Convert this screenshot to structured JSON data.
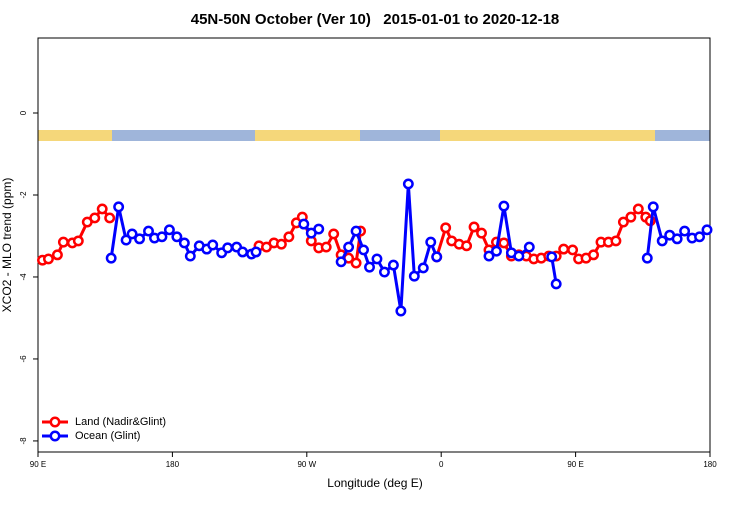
{
  "chart_data": {
    "type": "line",
    "title": "45N-50N October (Ver 10)   2015-01-01 to 2020-12-18",
    "xlabel": "Longitude (deg E)",
    "ylabel": "XCO2 - MLO trend (ppm)",
    "xlim": [
      90,
      540
    ],
    "xticks": [
      {
        "value": 90,
        "label": "90 E"
      },
      {
        "value": 180,
        "label": "180"
      },
      {
        "value": 270,
        "label": "90 W"
      },
      {
        "value": 360,
        "label": "0"
      },
      {
        "value": 450,
        "label": "90 E"
      },
      {
        "value": 540,
        "label": "180"
      }
    ],
    "ylim": [
      -8.27,
      1.83
    ],
    "yticks": [
      0,
      -2,
      -4,
      -6,
      -8
    ],
    "legend": "bottomleft",
    "series": [
      {
        "name": "Land (Nadir&Glint)",
        "color": "#ff0000",
        "x": [
          93,
          97,
          103,
          107,
          113,
          117,
          123,
          128,
          133,
          138,
          null,
          238,
          243,
          248,
          253,
          258,
          263,
          267,
          273,
          278,
          283,
          288,
          293,
          298,
          303,
          306,
          null,
          357,
          363,
          367,
          372,
          377,
          382,
          387,
          392,
          397,
          402,
          407,
          412,
          417,
          422,
          427,
          432,
          437,
          442,
          448,
          452,
          457,
          462,
          467,
          472,
          477,
          482,
          487,
          492,
          497,
          500
        ],
        "values": [
          -3.59,
          -3.56,
          -3.46,
          -3.15,
          -3.17,
          -3.12,
          -2.66,
          -2.56,
          -2.34,
          -2.56,
          null,
          -3.24,
          -3.27,
          -3.17,
          -3.2,
          -3.02,
          -2.68,
          -2.54,
          -3.12,
          -3.29,
          -3.27,
          -2.95,
          -3.46,
          -3.54,
          -3.66,
          -2.88,
          null,
          -3.51,
          -2.8,
          -3.12,
          -3.2,
          -3.24,
          -2.78,
          -2.93,
          -3.34,
          -3.15,
          -3.17,
          -3.49,
          -3.46,
          -3.49,
          -3.56,
          -3.54,
          -3.49,
          -3.49,
          -3.32,
          -3.34,
          -3.56,
          -3.54,
          -3.46,
          -3.15,
          -3.15,
          -3.12,
          -2.66,
          -2.54,
          -2.34,
          -2.54,
          -2.63
        ]
      },
      {
        "name": "Ocean (Glint)",
        "color": "#0000ff",
        "x": [
          139,
          144,
          149,
          153,
          158,
          164,
          168,
          173,
          178,
          183,
          188,
          192,
          198,
          203,
          207,
          213,
          217,
          223,
          227,
          233,
          236,
          null,
          268,
          273,
          278,
          null,
          293,
          298,
          303,
          308,
          312,
          317,
          322,
          328,
          333,
          338,
          342,
          348,
          353,
          357,
          null,
          392,
          397,
          402,
          407,
          412,
          419,
          null,
          434,
          437,
          null,
          498,
          502,
          508,
          513,
          518,
          523,
          528,
          533,
          538
        ],
        "values": [
          -3.54,
          -2.29,
          -3.1,
          -2.95,
          -3.07,
          -2.88,
          -3.05,
          -3.02,
          -2.85,
          -3.02,
          -3.17,
          -3.49,
          -3.24,
          -3.32,
          -3.22,
          -3.41,
          -3.29,
          -3.27,
          -3.39,
          -3.44,
          -3.39,
          null,
          -2.71,
          -2.93,
          -2.83,
          null,
          -3.63,
          -3.27,
          -2.88,
          -3.34,
          -3.76,
          -3.56,
          -3.88,
          -3.71,
          -4.83,
          -1.73,
          -3.98,
          -3.78,
          -3.15,
          -3.51,
          null,
          -3.49,
          -3.37,
          -2.27,
          -3.41,
          -3.49,
          -3.27,
          null,
          -3.51,
          -4.17,
          null,
          -3.54,
          -2.29,
          -3.12,
          -2.98,
          -3.07,
          -2.88,
          -3.05,
          -3.02,
          -2.85
        ]
      }
    ]
  }
}
